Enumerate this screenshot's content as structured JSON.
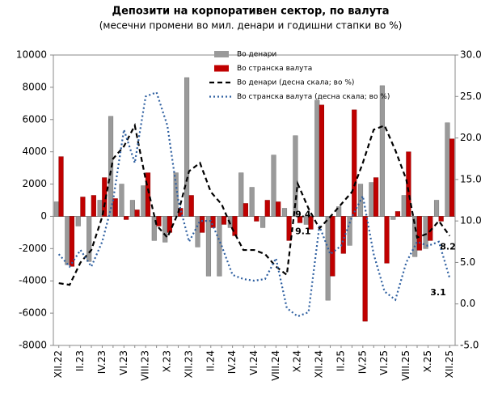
{
  "chart_data": {
    "type": "bar-line",
    "title": "Депозити на корпоративен сектор, по валута",
    "subtitle": "(месечни промени во мил. денари и годишни стапки во %)",
    "categories": [
      "XII.22",
      null,
      "II.23",
      null,
      "IV.23",
      null,
      "VI.23",
      null,
      "VIII.23",
      null,
      "X.23",
      null,
      "XII.23",
      null,
      "II.24",
      null,
      "IV.24",
      null,
      "VI.24",
      null,
      "VIII.24",
      null,
      "X.24",
      null,
      "XII.24",
      null,
      "II.25",
      null,
      "IV.25",
      null,
      "VI.25",
      null,
      "VIII.25",
      null,
      "X.25",
      null,
      "XII.25"
    ],
    "series": [
      {
        "name": "Во денари",
        "type": "bar",
        "color": "#9a9a9a",
        "values": [
          900,
          -3000,
          -600,
          -2800,
          1000,
          6200,
          2000,
          1000,
          1900,
          -1500,
          -1600,
          2700,
          8600,
          -1900,
          -3700,
          -3700,
          -700,
          2700,
          1800,
          -700,
          3800,
          500,
          5000,
          -500,
          7200,
          -5200,
          600,
          -1800,
          2000,
          2100,
          8100,
          -200,
          1300,
          -2500,
          -2000,
          1000,
          5800
        ]
      },
      {
        "name": "Во странска валута",
        "type": "bar",
        "color": "#c00000",
        "values": [
          3700,
          -3100,
          1200,
          1300,
          2400,
          1100,
          -200,
          400,
          2700,
          -600,
          -1000,
          500,
          1300,
          -1000,
          -700,
          -500,
          -1200,
          800,
          -300,
          1000,
          900,
          -1500,
          -400,
          -800,
          6900,
          -3700,
          -2300,
          6600,
          -6500,
          2400,
          -2900,
          300,
          4000,
          -2100,
          -1500,
          -300,
          4800
        ]
      },
      {
        "name": "Во денари (десна скала; во %)",
        "type": "line",
        "axis": "y2",
        "color": "#000000",
        "dash": "dashed",
        "values": [
          2.5,
          2.3,
          5.0,
          6.5,
          10.5,
          17.5,
          19,
          21.5,
          15,
          9.5,
          8,
          11,
          16,
          17,
          13.5,
          12,
          9,
          6.5,
          6.5,
          6,
          4.5,
          3.5,
          14.5,
          11.5,
          9.1,
          10.5,
          12,
          13.5,
          17,
          21,
          21.5,
          18.5,
          15,
          8,
          8.5,
          10,
          8.2
        ]
      },
      {
        "name": "Во странска валута (десна скала; во %)",
        "type": "line",
        "axis": "y2",
        "color": "#2e5fa0",
        "dash": "dotted",
        "values": [
          6.0,
          4.5,
          6.5,
          4.5,
          7.5,
          12.5,
          21,
          17,
          25,
          25.5,
          21.5,
          12.5,
          7.5,
          10,
          10,
          7,
          3.5,
          3,
          2.8,
          3,
          5.5,
          -0.5,
          -1.5,
          -1.0,
          9.4,
          6,
          7,
          10.5,
          13,
          6,
          1.5,
          0.5,
          5,
          7.5,
          7,
          7.5,
          3.1
        ]
      }
    ],
    "ylim": [
      -8000,
      10000
    ],
    "yticks": [
      -8000,
      -6000,
      -4000,
      -2000,
      0,
      2000,
      4000,
      6000,
      8000,
      10000
    ],
    "y2lim": [
      -5,
      30
    ],
    "y2ticks": [
      {
        "value": -5,
        "label": "-5.0"
      },
      {
        "value": 0,
        "label": "0.0"
      },
      {
        "value": 5,
        "label": "5.0"
      },
      {
        "value": 10,
        "label": "10.0"
      },
      {
        "value": 15,
        "label": "15.0"
      },
      {
        "value": 20,
        "label": "20.0"
      },
      {
        "value": 25,
        "label": "25.0"
      },
      {
        "value": 30,
        "label": "30.0"
      }
    ],
    "legend": "top"
  }
}
